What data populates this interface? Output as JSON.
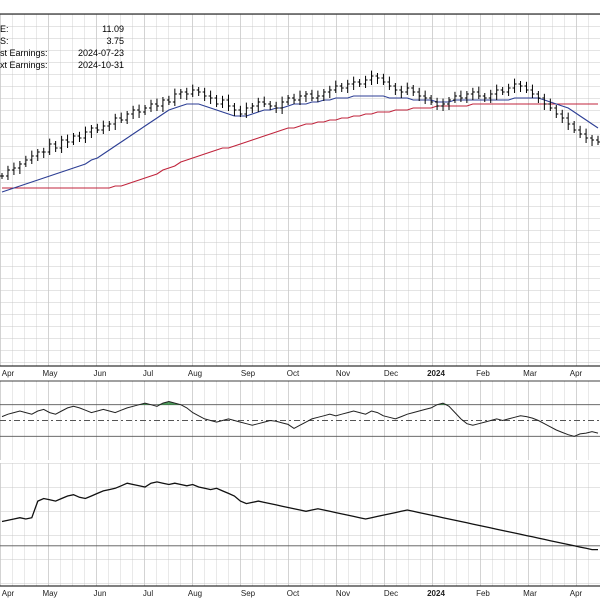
{
  "info": {
    "rows": [
      {
        "label": "E:",
        "value": "11.09"
      },
      {
        "label": "S:",
        "value": "3.75"
      },
      {
        "label": "st Earnings:",
        "value": "2024-07-23"
      },
      {
        "label": "xt Earnings:",
        "value": "2024-10-31"
      }
    ]
  },
  "colors": {
    "price_bars": "#000000",
    "sma_50": "#2c3e94",
    "sma_200": "#c0243c",
    "grid": "#c8c8c8",
    "overbought_fill": "#2e8b3e",
    "panel_border": "#000000"
  },
  "chart_data": [
    {
      "type": "line",
      "panel": "price",
      "style": "ohlc-bars",
      "x_tick_labels": [
        "Apr",
        "May",
        "Jun",
        "Jul",
        "Aug",
        "Sep",
        "Oct",
        "Nov",
        "Dec",
        "2024",
        "Feb",
        "Mar",
        "Apr"
      ],
      "bold_tick": "2024",
      "grid": true,
      "series": [
        {
          "role": "price",
          "y": [
            62,
            65,
            66,
            68,
            70,
            72,
            74,
            74,
            78,
            76,
            80,
            79,
            82,
            81,
            84,
            86,
            85,
            87,
            88,
            91,
            90,
            93,
            95,
            94,
            96,
            98,
            97,
            100,
            99,
            103,
            104,
            103,
            105,
            104,
            102,
            101,
            98,
            100,
            97,
            95,
            93,
            96,
            97,
            99,
            98,
            97,
            96,
            99,
            101,
            100,
            102,
            103,
            101,
            102,
            104,
            105,
            107,
            106,
            108,
            109,
            108,
            110,
            112,
            111,
            109,
            107,
            105,
            104,
            106,
            104,
            102,
            101,
            99,
            97,
            98,
            100,
            102,
            101,
            103,
            104,
            102,
            101,
            103,
            105,
            104,
            106,
            108,
            107,
            105,
            103,
            101,
            98,
            96,
            93,
            91,
            88,
            85,
            83,
            81,
            80,
            79
          ]
        },
        {
          "role": "sma_50",
          "y": [
            54,
            55,
            56,
            57,
            58,
            59,
            60,
            61,
            62,
            63,
            64,
            65,
            66,
            67,
            68,
            70,
            71,
            73,
            75,
            77,
            79,
            81,
            83,
            85,
            87,
            89,
            91,
            93,
            95,
            96,
            97,
            98,
            98,
            98,
            97,
            96,
            95,
            94,
            93,
            92,
            92,
            92,
            93,
            94,
            95,
            95,
            96,
            96,
            97,
            98,
            98,
            98,
            99,
            99,
            100,
            100,
            101,
            101,
            101,
            102,
            102,
            102,
            102,
            102,
            102,
            101,
            101,
            101,
            101,
            100,
            100,
            100,
            100,
            99,
            99,
            99,
            100,
            100,
            100,
            100,
            100,
            100,
            100,
            100,
            100,
            100,
            101,
            101,
            101,
            101,
            101,
            100,
            99,
            98,
            97,
            96,
            94,
            92,
            90,
            88,
            86
          ]
        },
        {
          "role": "sma_200",
          "y": [
            56,
            56,
            56,
            56,
            56,
            56,
            56,
            56,
            56,
            56,
            56,
            56,
            56,
            56,
            56,
            56,
            56,
            56,
            56,
            57,
            57,
            58,
            59,
            60,
            61,
            62,
            63,
            65,
            66,
            67,
            69,
            70,
            71,
            72,
            73,
            74,
            75,
            76,
            76,
            77,
            78,
            79,
            80,
            81,
            82,
            83,
            84,
            85,
            86,
            86,
            87,
            88,
            88,
            89,
            89,
            90,
            90,
            91,
            91,
            92,
            92,
            93,
            93,
            94,
            94,
            94,
            95,
            95,
            95,
            96,
            96,
            96,
            96,
            97,
            97,
            97,
            97,
            97,
            97,
            98,
            98,
            98,
            98,
            98,
            98,
            98,
            98,
            98,
            98,
            98,
            98,
            98,
            98,
            98,
            98,
            98,
            98,
            98,
            98,
            98,
            98
          ]
        }
      ]
    },
    {
      "type": "line",
      "panel": "rsi",
      "grid": true,
      "reference_lines": [
        30,
        50,
        70
      ],
      "ylim": [
        0,
        100
      ],
      "series": [
        {
          "role": "rsi",
          "y": [
            55,
            58,
            60,
            62,
            60,
            58,
            62,
            64,
            60,
            58,
            62,
            66,
            68,
            66,
            63,
            60,
            62,
            64,
            62,
            60,
            63,
            66,
            68,
            70,
            72,
            70,
            68,
            72,
            74,
            72,
            70,
            66,
            60,
            56,
            52,
            50,
            48,
            50,
            52,
            50,
            48,
            46,
            44,
            46,
            48,
            50,
            49,
            47,
            45,
            40,
            44,
            48,
            52,
            54,
            56,
            58,
            56,
            58,
            60,
            62,
            60,
            58,
            62,
            60,
            56,
            54,
            52,
            55,
            58,
            60,
            62,
            64,
            66,
            70,
            72,
            68,
            60,
            52,
            46,
            44,
            46,
            48,
            50,
            52,
            50,
            52,
            54,
            56,
            55,
            53,
            50,
            46,
            42,
            38,
            35,
            32,
            30,
            33,
            34,
            36,
            34
          ]
        }
      ]
    },
    {
      "type": "line",
      "panel": "relative_strength",
      "grid": true,
      "series": [
        {
          "role": "relative_strength",
          "y": [
            42,
            43,
            44,
            45,
            44,
            45,
            58,
            60,
            59,
            58,
            60,
            62,
            63,
            61,
            60,
            62,
            64,
            66,
            67,
            68,
            70,
            72,
            71,
            70,
            69,
            72,
            73,
            72,
            71,
            72,
            71,
            70,
            71,
            69,
            68,
            67,
            68,
            66,
            64,
            62,
            58,
            56,
            57,
            58,
            57,
            56,
            55,
            54,
            53,
            52,
            51,
            50,
            51,
            52,
            51,
            50,
            49,
            48,
            47,
            46,
            45,
            44,
            45,
            46,
            47,
            48,
            49,
            50,
            51,
            50,
            49,
            48,
            47,
            46,
            45,
            44,
            43,
            42,
            41,
            40,
            39,
            38,
            37,
            36,
            35,
            34,
            33,
            32,
            31,
            30,
            29,
            28,
            27,
            26,
            25,
            24,
            23,
            22,
            21,
            20,
            20
          ]
        }
      ]
    }
  ]
}
